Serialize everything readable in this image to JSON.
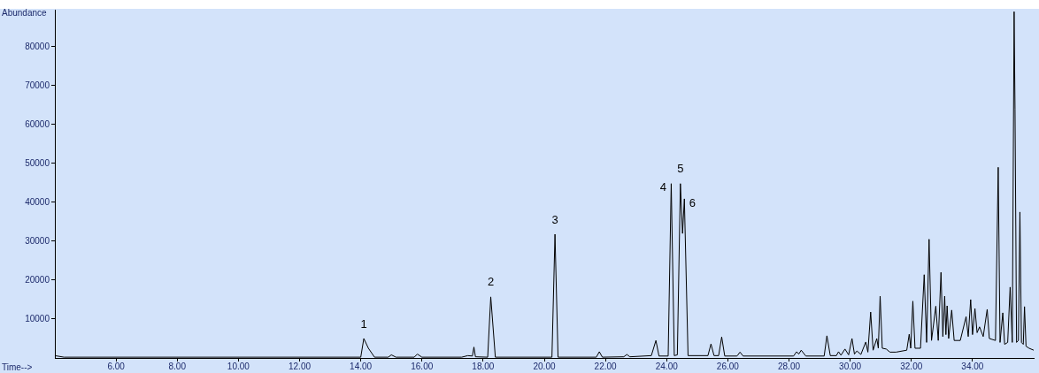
{
  "chart_data": {
    "type": "line",
    "xlabel": "Time-->",
    "ylabel": "Abundance",
    "xlim": [
      4.0,
      36.0
    ],
    "xticks": [
      {
        "value": 6,
        "label": "6.00"
      },
      {
        "value": 8,
        "label": "8.00"
      },
      {
        "value": 10,
        "label": "10.00"
      },
      {
        "value": 12,
        "label": "12.00"
      },
      {
        "value": 14,
        "label": "14.00"
      },
      {
        "value": 16,
        "label": "16.00"
      },
      {
        "value": 18,
        "label": "18.00"
      },
      {
        "value": 20,
        "label": "20.00"
      },
      {
        "value": 22,
        "label": "22.00"
      },
      {
        "value": 24,
        "label": "24.00"
      },
      {
        "value": 26,
        "label": "26.00"
      },
      {
        "value": 28,
        "label": "28.00"
      },
      {
        "value": 30,
        "label": "30.00"
      },
      {
        "value": 32,
        "label": "32.00"
      },
      {
        "value": 34,
        "label": "34.00"
      }
    ],
    "ylim": [
      0,
      89500
    ],
    "yticks": [
      10000,
      20000,
      30000,
      40000,
      50000,
      60000,
      70000,
      80000
    ],
    "grid": false,
    "legend": false,
    "annotations": [
      {
        "text": "1",
        "x": 14.1,
        "y": 5000
      },
      {
        "text": "2",
        "x": 18.25,
        "y": 15700
      },
      {
        "text": "3",
        "x": 20.35,
        "y": 31800
      },
      {
        "text": "4",
        "x": 24.15,
        "y": 44800
      },
      {
        "text": "5",
        "x": 24.45,
        "y": 44800
      },
      {
        "text": "6",
        "x": 24.58,
        "y": 40900
      }
    ],
    "series": [
      {
        "color": "#000000",
        "x": [
          4.0,
          4.3,
          14.0,
          14.1,
          14.25,
          14.45,
          14.9,
          15.0,
          15.15,
          15.75,
          15.85,
          16.0,
          17.3,
          17.5,
          17.65,
          17.7,
          17.75,
          18.15,
          18.25,
          18.4,
          20.25,
          20.35,
          20.45,
          21.7,
          21.8,
          21.9,
          22.6,
          22.7,
          22.8,
          23.5,
          23.65,
          23.75,
          24.05,
          24.15,
          24.25,
          24.35,
          24.45,
          24.52,
          24.58,
          24.7,
          25.35,
          25.45,
          25.55,
          25.7,
          25.8,
          25.9,
          26.3,
          26.4,
          26.5,
          28.15,
          28.25,
          28.32,
          28.4,
          28.55,
          29.15,
          29.24,
          29.35,
          29.55,
          29.62,
          29.7,
          29.83,
          29.95,
          30.06,
          30.14,
          30.22,
          30.35,
          30.51,
          30.58,
          30.67,
          30.75,
          30.87,
          30.92,
          30.98,
          31.05,
          31.18,
          31.3,
          31.5,
          31.85,
          31.93,
          31.98,
          32.05,
          32.12,
          32.3,
          32.42,
          32.5,
          32.58,
          32.66,
          32.8,
          32.88,
          32.97,
          33.03,
          33.09,
          33.13,
          33.17,
          33.22,
          33.32,
          33.4,
          33.6,
          33.79,
          33.86,
          33.94,
          34.0,
          34.08,
          34.15,
          34.23,
          34.35,
          34.48,
          34.55,
          34.75,
          34.84,
          34.9,
          34.99,
          35.05,
          35.15,
          35.23,
          35.3,
          35.36,
          35.39,
          35.44,
          35.5,
          35.55,
          35.6,
          35.66,
          35.7,
          35.75,
          35.85,
          36.0
        ],
        "values": [
          600,
          200,
          200,
          5000,
          2500,
          200,
          200,
          800,
          200,
          200,
          1000,
          200,
          200,
          600,
          500,
          2800,
          300,
          200,
          15700,
          200,
          200,
          31800,
          200,
          200,
          1600,
          200,
          300,
          900,
          300,
          600,
          4500,
          500,
          500,
          44800,
          600,
          800,
          44800,
          32000,
          40900,
          600,
          600,
          3600,
          600,
          600,
          5400,
          500,
          500,
          1500,
          500,
          500,
          1600,
          1000,
          2000,
          500,
          500,
          5700,
          600,
          600,
          1600,
          700,
          2300,
          800,
          5000,
          1000,
          1800,
          900,
          4100,
          1500,
          11800,
          2000,
          5000,
          2500,
          15900,
          2500,
          2300,
          1500,
          1500,
          2000,
          6100,
          2500,
          14600,
          2500,
          2500,
          21400,
          4000,
          30500,
          4500,
          13300,
          4500,
          22000,
          5500,
          15900,
          6000,
          13400,
          5000,
          12300,
          4500,
          4500,
          10600,
          5500,
          15000,
          6000,
          12700,
          6500,
          8000,
          5500,
          12500,
          5000,
          4500,
          49000,
          4000,
          11600,
          3500,
          4000,
          18200,
          4000,
          89000,
          64000,
          4000,
          4500,
          37500,
          4000,
          3500,
          13200,
          3000,
          2500,
          2000
        ]
      }
    ]
  }
}
